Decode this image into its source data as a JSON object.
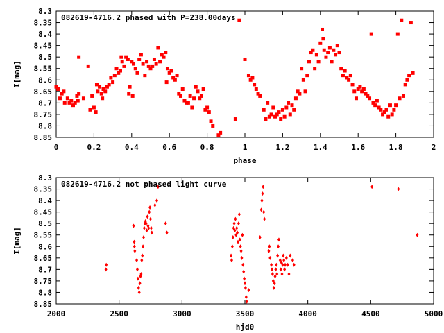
{
  "chart_data": [
    {
      "type": "scatter",
      "title": "082619-4716.2 phased with P=238.00days",
      "xlabel": "phase",
      "ylabel": "I[mag]",
      "xlim": [
        0,
        2
      ],
      "ylim": [
        8.85,
        8.3
      ],
      "y_inverted": true,
      "grid": false,
      "marker_color": "#ff0000",
      "xticks": [
        0,
        0.2,
        0.4,
        0.6,
        0.8,
        1,
        1.2,
        1.4,
        1.6,
        1.8,
        2
      ],
      "xtick_labels": [
        "0",
        "0.2",
        "0.4",
        "0.6",
        "0.8",
        "1",
        "1.2",
        "1.4",
        "1.6",
        "1.8",
        "2"
      ],
      "yticks": [
        8.3,
        8.35,
        8.4,
        8.45,
        8.5,
        8.55,
        8.6,
        8.65,
        8.7,
        8.75,
        8.8,
        8.85
      ],
      "ytick_labels": [
        "8.3",
        "8.35",
        "8.4",
        "8.45",
        "8.5",
        "8.55",
        "8.6",
        "8.65",
        "8.7",
        "8.75",
        "8.8",
        "8.85"
      ],
      "points": [
        [
          0.0,
          8.63
        ],
        [
          0.01,
          8.64
        ],
        [
          0.02,
          8.68
        ],
        [
          0.03,
          8.66
        ],
        [
          0.04,
          8.65
        ],
        [
          0.045,
          8.7
        ],
        [
          0.06,
          8.68
        ],
        [
          0.07,
          8.7
        ],
        [
          0.08,
          8.69
        ],
        [
          0.09,
          8.71
        ],
        [
          0.1,
          8.7
        ],
        [
          0.11,
          8.67
        ],
        [
          0.115,
          8.69
        ],
        [
          0.12,
          8.66
        ],
        [
          0.12,
          8.5
        ],
        [
          0.145,
          8.68
        ],
        [
          0.17,
          8.54
        ],
        [
          0.18,
          8.73
        ],
        [
          0.19,
          8.67
        ],
        [
          0.2,
          8.72
        ],
        [
          0.21,
          8.74
        ],
        [
          0.215,
          8.62
        ],
        [
          0.22,
          8.65
        ],
        [
          0.23,
          8.63
        ],
        [
          0.24,
          8.66
        ],
        [
          0.245,
          8.68
        ],
        [
          0.25,
          8.64
        ],
        [
          0.26,
          8.65
        ],
        [
          0.27,
          8.63
        ],
        [
          0.28,
          8.62
        ],
        [
          0.29,
          8.59
        ],
        [
          0.3,
          8.61
        ],
        [
          0.31,
          8.58
        ],
        [
          0.32,
          8.55
        ],
        [
          0.33,
          8.57
        ],
        [
          0.34,
          8.56
        ],
        [
          0.345,
          8.5
        ],
        [
          0.35,
          8.52
        ],
        [
          0.36,
          8.54
        ],
        [
          0.37,
          8.5
        ],
        [
          0.38,
          8.51
        ],
        [
          0.385,
          8.66
        ],
        [
          0.39,
          8.63
        ],
        [
          0.4,
          8.52
        ],
        [
          0.405,
          8.67
        ],
        [
          0.41,
          8.53
        ],
        [
          0.42,
          8.55
        ],
        [
          0.43,
          8.57
        ],
        [
          0.44,
          8.51
        ],
        [
          0.45,
          8.49
        ],
        [
          0.46,
          8.53
        ],
        [
          0.47,
          8.58
        ],
        [
          0.48,
          8.52
        ],
        [
          0.49,
          8.54
        ],
        [
          0.5,
          8.55
        ],
        [
          0.51,
          8.54
        ],
        [
          0.52,
          8.51
        ],
        [
          0.53,
          8.53
        ],
        [
          0.54,
          8.46
        ],
        [
          0.55,
          8.52
        ],
        [
          0.56,
          8.49
        ],
        [
          0.57,
          8.5
        ],
        [
          0.58,
          8.48
        ],
        [
          0.585,
          8.61
        ],
        [
          0.59,
          8.55
        ],
        [
          0.6,
          8.57
        ],
        [
          0.61,
          8.56
        ],
        [
          0.62,
          8.59
        ],
        [
          0.63,
          8.6
        ],
        [
          0.64,
          8.58
        ],
        [
          0.65,
          8.66
        ],
        [
          0.66,
          8.67
        ],
        [
          0.67,
          8.64
        ],
        [
          0.68,
          8.69
        ],
        [
          0.69,
          8.7
        ],
        [
          0.7,
          8.7
        ],
        [
          0.71,
          8.67
        ],
        [
          0.72,
          8.72
        ],
        [
          0.73,
          8.68
        ],
        [
          0.74,
          8.63
        ],
        [
          0.75,
          8.65
        ],
        [
          0.76,
          8.68
        ],
        [
          0.77,
          8.67
        ],
        [
          0.78,
          8.64
        ],
        [
          0.79,
          8.73
        ],
        [
          0.8,
          8.72
        ],
        [
          0.81,
          8.74
        ],
        [
          0.82,
          8.78
        ],
        [
          0.83,
          8.8
        ],
        [
          0.86,
          8.84
        ],
        [
          0.87,
          8.83
        ],
        [
          0.95,
          8.77
        ],
        [
          0.97,
          8.34
        ],
        [
          1.0,
          8.51
        ],
        [
          1.02,
          8.58
        ],
        [
          1.03,
          8.6
        ],
        [
          1.04,
          8.59
        ],
        [
          1.05,
          8.62
        ],
        [
          1.06,
          8.64
        ],
        [
          1.07,
          8.66
        ],
        [
          1.08,
          8.67
        ],
        [
          1.1,
          8.73
        ],
        [
          1.11,
          8.77
        ],
        [
          1.12,
          8.7
        ],
        [
          1.13,
          8.76
        ],
        [
          1.14,
          8.75
        ],
        [
          1.15,
          8.72
        ],
        [
          1.16,
          8.76
        ],
        [
          1.17,
          8.75
        ],
        [
          1.18,
          8.74
        ],
        [
          1.19,
          8.77
        ],
        [
          1.2,
          8.73
        ],
        [
          1.21,
          8.76
        ],
        [
          1.22,
          8.72
        ],
        [
          1.23,
          8.7
        ],
        [
          1.24,
          8.75
        ],
        [
          1.25,
          8.71
        ],
        [
          1.26,
          8.73
        ],
        [
          1.27,
          8.68
        ],
        [
          1.28,
          8.65
        ],
        [
          1.29,
          8.66
        ],
        [
          1.3,
          8.55
        ],
        [
          1.31,
          8.6
        ],
        [
          1.32,
          8.65
        ],
        [
          1.33,
          8.58
        ],
        [
          1.34,
          8.52
        ],
        [
          1.35,
          8.48
        ],
        [
          1.36,
          8.47
        ],
        [
          1.37,
          8.55
        ],
        [
          1.38,
          8.49
        ],
        [
          1.39,
          8.52
        ],
        [
          1.4,
          8.44
        ],
        [
          1.41,
          8.38
        ],
        [
          1.415,
          8.42
        ],
        [
          1.42,
          8.47
        ],
        [
          1.43,
          8.5
        ],
        [
          1.44,
          8.48
        ],
        [
          1.45,
          8.46
        ],
        [
          1.46,
          8.52
        ],
        [
          1.47,
          8.47
        ],
        [
          1.48,
          8.49
        ],
        [
          1.49,
          8.45
        ],
        [
          1.5,
          8.48
        ],
        [
          1.51,
          8.55
        ],
        [
          1.52,
          8.58
        ],
        [
          1.53,
          8.56
        ],
        [
          1.54,
          8.59
        ],
        [
          1.55,
          8.6
        ],
        [
          1.56,
          8.58
        ],
        [
          1.57,
          8.62
        ],
        [
          1.58,
          8.65
        ],
        [
          1.59,
          8.68
        ],
        [
          1.6,
          8.64
        ],
        [
          1.61,
          8.63
        ],
        [
          1.62,
          8.65
        ],
        [
          1.63,
          8.64
        ],
        [
          1.64,
          8.66
        ],
        [
          1.65,
          8.67
        ],
        [
          1.66,
          8.68
        ],
        [
          1.67,
          8.4
        ],
        [
          1.68,
          8.7
        ],
        [
          1.69,
          8.71
        ],
        [
          1.7,
          8.69
        ],
        [
          1.71,
          8.72
        ],
        [
          1.72,
          8.73
        ],
        [
          1.73,
          8.75
        ],
        [
          1.74,
          8.74
        ],
        [
          1.75,
          8.73
        ],
        [
          1.76,
          8.76
        ],
        [
          1.77,
          8.71
        ],
        [
          1.78,
          8.75
        ],
        [
          1.79,
          8.73
        ],
        [
          1.8,
          8.71
        ],
        [
          1.81,
          8.4
        ],
        [
          1.82,
          8.68
        ],
        [
          1.83,
          8.34
        ],
        [
          1.84,
          8.67
        ],
        [
          1.85,
          8.62
        ],
        [
          1.86,
          8.6
        ],
        [
          1.87,
          8.58
        ],
        [
          1.88,
          8.35
        ],
        [
          1.89,
          8.57
        ]
      ]
    },
    {
      "type": "scatter",
      "title": "082619-4716.2 not phased light curve",
      "xlabel": "hjd0",
      "ylabel": "I[mag]",
      "xlim": [
        2000,
        5000
      ],
      "ylim": [
        8.85,
        8.3
      ],
      "y_inverted": true,
      "grid": false,
      "marker_color": "#ff0000",
      "xticks": [
        2000,
        2500,
        3000,
        3500,
        4000,
        4500,
        5000
      ],
      "xtick_labels": [
        "2000",
        "2500",
        "3000",
        "3500",
        "4000",
        "4500",
        "5000"
      ],
      "yticks": [
        8.3,
        8.35,
        8.4,
        8.45,
        8.5,
        8.55,
        8.6,
        8.65,
        8.7,
        8.75,
        8.8,
        8.85
      ],
      "ytick_labels": [
        "8.3",
        "8.35",
        "8.4",
        "8.45",
        "8.5",
        "8.55",
        "8.6",
        "8.65",
        "8.7",
        "8.75",
        "8.8",
        "8.85"
      ],
      "points": [
        [
          2395,
          8.7
        ],
        [
          2398,
          8.68
        ],
        [
          2615,
          8.51
        ],
        [
          2620,
          8.58
        ],
        [
          2622,
          8.6
        ],
        [
          2625,
          8.62
        ],
        [
          2640,
          8.66
        ],
        [
          2645,
          8.7
        ],
        [
          2650,
          8.74
        ],
        [
          2655,
          8.78
        ],
        [
          2660,
          8.8
        ],
        [
          2665,
          8.76
        ],
        [
          2670,
          8.73
        ],
        [
          2675,
          8.72
        ],
        [
          2680,
          8.66
        ],
        [
          2685,
          8.64
        ],
        [
          2690,
          8.6
        ],
        [
          2695,
          8.56
        ],
        [
          2700,
          8.52
        ],
        [
          2705,
          8.5
        ],
        [
          2710,
          8.49
        ],
        [
          2715,
          8.5
        ],
        [
          2720,
          8.53
        ],
        [
          2725,
          8.47
        ],
        [
          2730,
          8.51
        ],
        [
          2735,
          8.52
        ],
        [
          2740,
          8.45
        ],
        [
          2745,
          8.43
        ],
        [
          2750,
          8.48
        ],
        [
          2755,
          8.52
        ],
        [
          2760,
          8.54
        ],
        [
          2785,
          8.42
        ],
        [
          2800,
          8.4
        ],
        [
          2810,
          8.34
        ],
        [
          2870,
          8.5
        ],
        [
          2880,
          8.54
        ],
        [
          3390,
          8.64
        ],
        [
          3395,
          8.66
        ],
        [
          3400,
          8.6
        ],
        [
          3405,
          8.56
        ],
        [
          3410,
          8.52
        ],
        [
          3415,
          8.5
        ],
        [
          3420,
          8.53
        ],
        [
          3425,
          8.48
        ],
        [
          3430,
          8.55
        ],
        [
          3435,
          8.52
        ],
        [
          3440,
          8.54
        ],
        [
          3445,
          8.58
        ],
        [
          3450,
          8.5
        ],
        [
          3455,
          8.46
        ],
        [
          3460,
          8.57
        ],
        [
          3465,
          8.6
        ],
        [
          3470,
          8.62
        ],
        [
          3475,
          8.65
        ],
        [
          3480,
          8.55
        ],
        [
          3485,
          8.68
        ],
        [
          3490,
          8.71
        ],
        [
          3495,
          8.74
        ],
        [
          3500,
          8.76
        ],
        [
          3505,
          8.78
        ],
        [
          3510,
          8.82
        ],
        [
          3515,
          8.84
        ],
        [
          3530,
          8.79
        ],
        [
          3620,
          8.56
        ],
        [
          3630,
          8.44
        ],
        [
          3635,
          8.4
        ],
        [
          3640,
          8.37
        ],
        [
          3645,
          8.34
        ],
        [
          3650,
          8.45
        ],
        [
          3655,
          8.48
        ],
        [
          3690,
          8.62
        ],
        [
          3695,
          8.6
        ],
        [
          3700,
          8.65
        ],
        [
          3710,
          8.68
        ],
        [
          3715,
          8.7
        ],
        [
          3720,
          8.72
        ],
        [
          3725,
          8.75
        ],
        [
          3730,
          8.78
        ],
        [
          3735,
          8.76
        ],
        [
          3740,
          8.73
        ],
        [
          3745,
          8.7
        ],
        [
          3750,
          8.68
        ],
        [
          3755,
          8.72
        ],
        [
          3760,
          8.64
        ],
        [
          3765,
          8.6
        ],
        [
          3770,
          8.57
        ],
        [
          3780,
          8.66
        ],
        [
          3785,
          8.7
        ],
        [
          3790,
          8.67
        ],
        [
          3795,
          8.72
        ],
        [
          3800,
          8.68
        ],
        [
          3805,
          8.64
        ],
        [
          3810,
          8.66
        ],
        [
          3815,
          8.7
        ],
        [
          3820,
          8.68
        ],
        [
          3830,
          8.65
        ],
        [
          3840,
          8.68
        ],
        [
          3850,
          8.72
        ],
        [
          3860,
          8.64
        ],
        [
          3880,
          8.66
        ],
        [
          3890,
          8.68
        ],
        [
          4510,
          8.34
        ],
        [
          4720,
          8.35
        ],
        [
          4870,
          8.55
        ]
      ]
    }
  ]
}
